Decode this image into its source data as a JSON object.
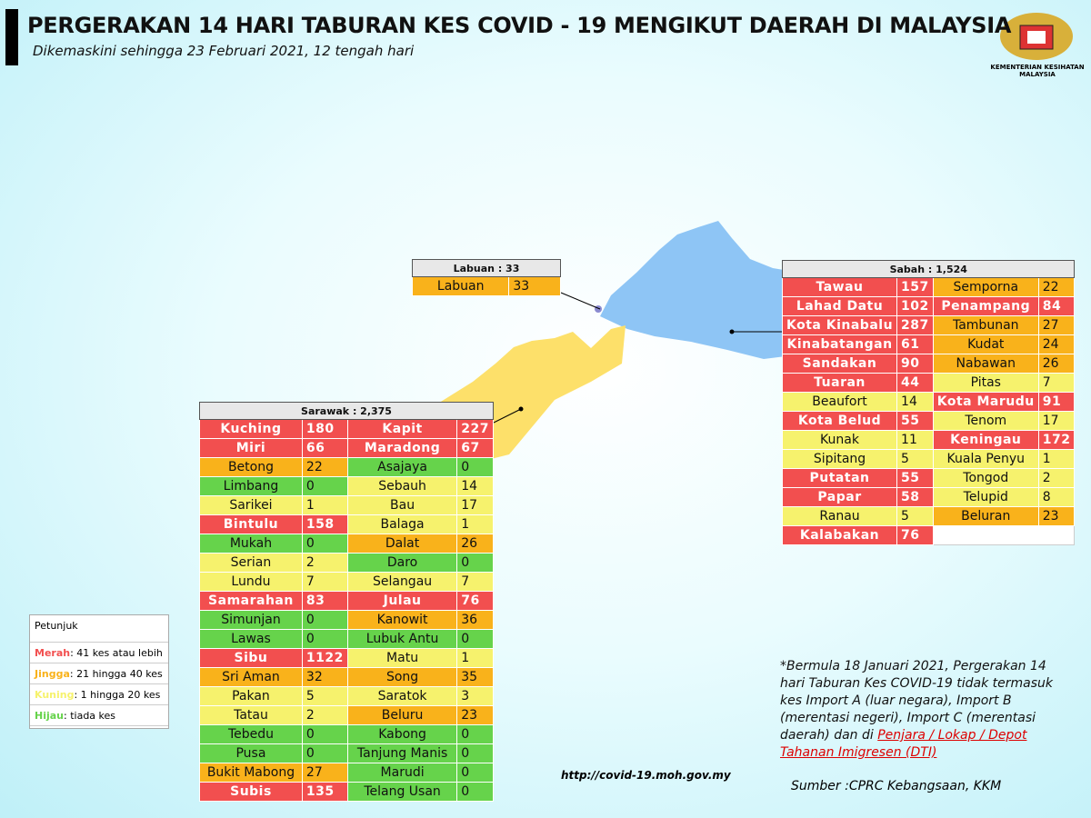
{
  "header": {
    "title": "PERGERAKAN 14 HARI TABURAN KES COVID - 19 MENGIKUT DAERAH DI MALAYSIA",
    "subtitle": "Dikemaskini sehingga 23 Februari 2021, 12 tengah hari",
    "agency": "KEMENTERIAN KESIHATAN MALAYSIA"
  },
  "tables": {
    "labuan": {
      "title": "Labuan : 33",
      "rows": [
        [
          {
            "name": "Labuan",
            "cases": 33,
            "color": "#f9b21b"
          }
        ]
      ]
    },
    "sabah": {
      "title": "Sabah : 1,524",
      "rows": [
        [
          {
            "name": "Tawau",
            "cases": 157,
            "color": "#f24f4f"
          },
          {
            "name": "Semporna",
            "cases": 22,
            "color": "#f9b21b"
          }
        ],
        [
          {
            "name": "Lahad Datu",
            "cases": 102,
            "color": "#f24f4f"
          },
          {
            "name": "Penampang",
            "cases": 84,
            "color": "#f24f4f"
          }
        ],
        [
          {
            "name": "Kota Kinabalu",
            "cases": 287,
            "color": "#f24f4f"
          },
          {
            "name": "Tambunan",
            "cases": 27,
            "color": "#f9b21b"
          }
        ],
        [
          {
            "name": "Kinabatangan",
            "cases": 61,
            "color": "#f24f4f"
          },
          {
            "name": "Kudat",
            "cases": 24,
            "color": "#f9b21b"
          }
        ],
        [
          {
            "name": "Sandakan",
            "cases": 90,
            "color": "#f24f4f"
          },
          {
            "name": "Nabawan",
            "cases": 26,
            "color": "#f9b21b"
          }
        ],
        [
          {
            "name": "Tuaran",
            "cases": 44,
            "color": "#f24f4f"
          },
          {
            "name": "Pitas",
            "cases": 7,
            "color": "#f6f26d"
          }
        ],
        [
          {
            "name": "Beaufort",
            "cases": 14,
            "color": "#f6f26d"
          },
          {
            "name": "Kota Marudu",
            "cases": 91,
            "color": "#f24f4f"
          }
        ],
        [
          {
            "name": "Kota Belud",
            "cases": 55,
            "color": "#f24f4f"
          },
          {
            "name": "Tenom",
            "cases": 17,
            "color": "#f6f26d"
          }
        ],
        [
          {
            "name": "Kunak",
            "cases": 11,
            "color": "#f6f26d"
          },
          {
            "name": "Keningau",
            "cases": 172,
            "color": "#f24f4f"
          }
        ],
        [
          {
            "name": "Sipitang",
            "cases": 5,
            "color": "#f6f26d"
          },
          {
            "name": "Kuala Penyu",
            "cases": 1,
            "color": "#f6f26d"
          }
        ],
        [
          {
            "name": "Putatan",
            "cases": 55,
            "color": "#f24f4f"
          },
          {
            "name": "Tongod",
            "cases": 2,
            "color": "#f6f26d"
          }
        ],
        [
          {
            "name": "Papar",
            "cases": 58,
            "color": "#f24f4f"
          },
          {
            "name": "Telupid",
            "cases": 8,
            "color": "#f6f26d"
          }
        ],
        [
          {
            "name": "Ranau",
            "cases": 5,
            "color": "#f6f26d"
          },
          {
            "name": "Beluran",
            "cases": 23,
            "color": "#f9b21b"
          }
        ],
        [
          {
            "name": "Kalabakan",
            "cases": 76,
            "color": "#f24f4f"
          }
        ]
      ]
    },
    "sarawak": {
      "title": "Sarawak : 2,375",
      "rows": [
        [
          {
            "name": "Kuching",
            "cases": 180,
            "color": "#f24f4f"
          },
          {
            "name": "Kapit",
            "cases": 227,
            "color": "#f24f4f"
          }
        ],
        [
          {
            "name": "Miri",
            "cases": 66,
            "color": "#f24f4f"
          },
          {
            "name": "Maradong",
            "cases": 67,
            "color": "#f24f4f"
          }
        ],
        [
          {
            "name": "Betong",
            "cases": 22,
            "color": "#f9b21b"
          },
          {
            "name": "Asajaya",
            "cases": 0,
            "color": "#66d34b"
          }
        ],
        [
          {
            "name": "Limbang",
            "cases": 0,
            "color": "#66d34b"
          },
          {
            "name": "Sebauh",
            "cases": 14,
            "color": "#f6f26d"
          }
        ],
        [
          {
            "name": "Sarikei",
            "cases": 1,
            "color": "#f6f26d"
          },
          {
            "name": "Bau",
            "cases": 17,
            "color": "#f6f26d"
          }
        ],
        [
          {
            "name": "Bintulu",
            "cases": 158,
            "color": "#f24f4f"
          },
          {
            "name": "Balaga",
            "cases": 1,
            "color": "#f6f26d"
          }
        ],
        [
          {
            "name": "Mukah",
            "cases": 0,
            "color": "#66d34b"
          },
          {
            "name": "Dalat",
            "cases": 26,
            "color": "#f9b21b"
          }
        ],
        [
          {
            "name": "Serian",
            "cases": 2,
            "color": "#f6f26d"
          },
          {
            "name": "Daro",
            "cases": 0,
            "color": "#66d34b"
          }
        ],
        [
          {
            "name": "Lundu",
            "cases": 7,
            "color": "#f6f26d"
          },
          {
            "name": "Selangau",
            "cases": 7,
            "color": "#f6f26d"
          }
        ],
        [
          {
            "name": "Samarahan",
            "cases": 83,
            "color": "#f24f4f"
          },
          {
            "name": "Julau",
            "cases": 76,
            "color": "#f24f4f"
          }
        ],
        [
          {
            "name": "Simunjan",
            "cases": 0,
            "color": "#66d34b"
          },
          {
            "name": "Kanowit",
            "cases": 36,
            "color": "#f9b21b"
          }
        ],
        [
          {
            "name": "Lawas",
            "cases": 0,
            "color": "#66d34b"
          },
          {
            "name": "Lubuk Antu",
            "cases": 0,
            "color": "#66d34b"
          }
        ],
        [
          {
            "name": "Sibu",
            "cases": 1122,
            "color": "#f24f4f"
          },
          {
            "name": "Matu",
            "cases": 1,
            "color": "#f6f26d"
          }
        ],
        [
          {
            "name": "Sri Aman",
            "cases": 32,
            "color": "#f9b21b"
          },
          {
            "name": "Song",
            "cases": 35,
            "color": "#f9b21b"
          }
        ],
        [
          {
            "name": "Pakan",
            "cases": 5,
            "color": "#f6f26d"
          },
          {
            "name": "Saratok",
            "cases": 3,
            "color": "#f6f26d"
          }
        ],
        [
          {
            "name": "Tatau",
            "cases": 2,
            "color": "#f6f26d"
          },
          {
            "name": "Beluru",
            "cases": 23,
            "color": "#f9b21b"
          }
        ],
        [
          {
            "name": "Tebedu",
            "cases": 0,
            "color": "#66d34b"
          },
          {
            "name": "Kabong",
            "cases": 0,
            "color": "#66d34b"
          }
        ],
        [
          {
            "name": "Pusa",
            "cases": 0,
            "color": "#66d34b"
          },
          {
            "name": "Tanjung Manis",
            "cases": 0,
            "color": "#66d34b"
          }
        ],
        [
          {
            "name": "Bukit Mabong",
            "cases": 27,
            "color": "#f9b21b"
          },
          {
            "name": "Marudi",
            "cases": 0,
            "color": "#66d34b"
          }
        ],
        [
          {
            "name": "Subis",
            "cases": 135,
            "color": "#f24f4f"
          },
          {
            "name": "Telang Usan",
            "cases": 0,
            "color": "#66d34b"
          }
        ]
      ]
    }
  },
  "legend": {
    "title": "Petunjuk",
    "items": [
      {
        "label": "Merah",
        "text": ": 41 kes atau lebih",
        "color": "#f24f4f"
      },
      {
        "label": "Jingga",
        "text": ": 21 hingga 40 kes",
        "color": "#f9b21b"
      },
      {
        "label": "Kuning",
        "text": ": 1 hingga 20 kes",
        "color": "#f6f26d"
      },
      {
        "label": "Hijau",
        "text": ": tiada kes",
        "color": "#66d34b"
      }
    ]
  },
  "note": {
    "text": "*Bermula 18 Januari 2021, Pergerakan 14 hari Taburan Kes COVID-19 tidak termasuk kes Import A (luar negara), Import B (merentasi negeri), Import C (merentasi daerah) dan di",
    "link": "Penjara / Lokap / Depot Tahanan Imigresen (DTI)"
  },
  "url": "http://covid-19.moh.gov.my",
  "source": "Sumber :CPRC Kebangsaan,  KKM"
}
